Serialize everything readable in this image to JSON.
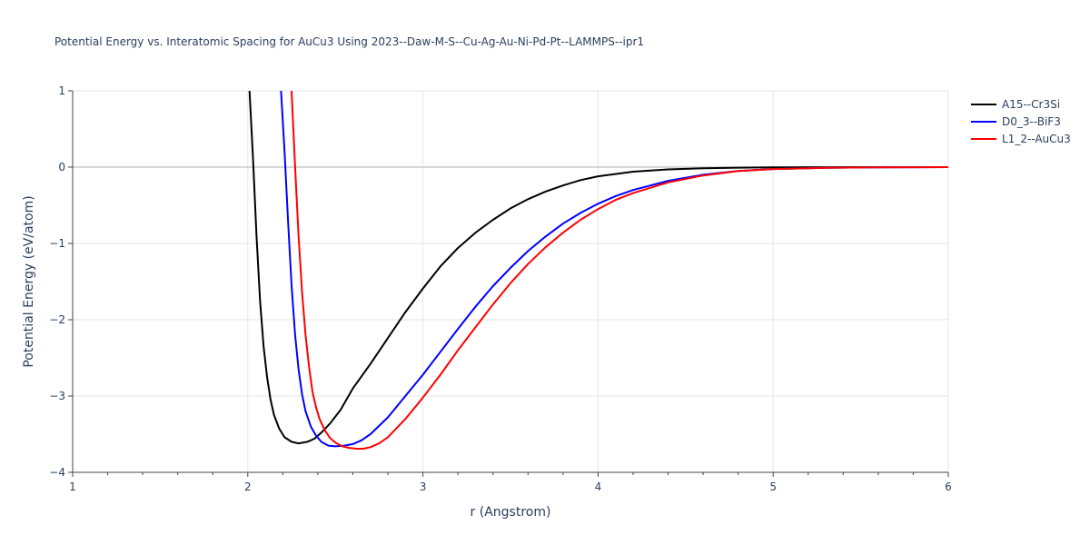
{
  "chart_data": {
    "type": "line",
    "title": "Potential Energy vs. Interatomic Spacing for AuCu3 Using 2023--Daw-M-S--Cu-Ag-Au-Ni-Pd-Pt--LAMMPS--ipr1",
    "xlabel": "r (Angstrom)",
    "ylabel": "Potential Energy (eV/atom)",
    "xlim": [
      1,
      6
    ],
    "ylim": [
      -4,
      1
    ],
    "x_ticks": [
      1,
      2,
      3,
      4,
      5,
      6
    ],
    "x_tick_labels": [
      "1",
      "2",
      "3",
      "4",
      "5",
      "6"
    ],
    "y_ticks": [
      -4,
      -3,
      -2,
      -1,
      0,
      1
    ],
    "y_tick_labels": [
      "−4",
      "−3",
      "−2",
      "−1",
      "0",
      "1"
    ],
    "grid": true,
    "legend_position": "top-right",
    "series": [
      {
        "name": "A15--Cr3Si",
        "color": "#000000",
        "x": [
          2.01,
          2.03,
          2.05,
          2.07,
          2.09,
          2.11,
          2.13,
          2.15,
          2.18,
          2.21,
          2.25,
          2.29,
          2.34,
          2.38,
          2.42,
          2.47,
          2.53,
          2.6,
          2.7,
          2.8,
          2.9,
          3.0,
          3.1,
          3.2,
          3.3,
          3.4,
          3.5,
          3.6,
          3.7,
          3.8,
          3.9,
          4.0,
          4.2,
          4.4,
          4.6,
          4.8,
          5.0,
          5.3,
          5.6,
          6.0
        ],
        "y": [
          1.0,
          0.1,
          -0.9,
          -1.75,
          -2.35,
          -2.75,
          -3.05,
          -3.25,
          -3.43,
          -3.54,
          -3.6,
          -3.62,
          -3.6,
          -3.56,
          -3.48,
          -3.36,
          -3.18,
          -2.9,
          -2.58,
          -2.24,
          -1.9,
          -1.59,
          -1.3,
          -1.06,
          -0.86,
          -0.69,
          -0.54,
          -0.42,
          -0.32,
          -0.24,
          -0.17,
          -0.12,
          -0.06,
          -0.03,
          -0.015,
          -0.007,
          -0.003,
          -0.001,
          0.0,
          0.0
        ]
      },
      {
        "name": "D0_3--BiF3",
        "color": "#0000ff",
        "x": [
          2.19,
          2.21,
          2.23,
          2.25,
          2.27,
          2.29,
          2.31,
          2.33,
          2.36,
          2.39,
          2.42,
          2.46,
          2.5,
          2.55,
          2.6,
          2.65,
          2.7,
          2.8,
          2.9,
          3.0,
          3.1,
          3.2,
          3.3,
          3.4,
          3.5,
          3.6,
          3.7,
          3.8,
          3.9,
          4.0,
          4.1,
          4.2,
          4.4,
          4.6,
          4.8,
          5.0,
          5.3,
          5.6,
          6.0
        ],
        "y": [
          1.0,
          0.2,
          -0.7,
          -1.55,
          -2.2,
          -2.65,
          -2.98,
          -3.2,
          -3.4,
          -3.52,
          -3.6,
          -3.65,
          -3.66,
          -3.65,
          -3.63,
          -3.58,
          -3.5,
          -3.28,
          -3.0,
          -2.72,
          -2.42,
          -2.12,
          -1.83,
          -1.56,
          -1.32,
          -1.1,
          -0.91,
          -0.74,
          -0.6,
          -0.48,
          -0.38,
          -0.3,
          -0.18,
          -0.1,
          -0.05,
          -0.025,
          -0.01,
          -0.003,
          0.0
        ]
      },
      {
        "name": "L1_2--AuCu3",
        "color": "#ff0000",
        "x": [
          2.25,
          2.27,
          2.29,
          2.31,
          2.33,
          2.35,
          2.37,
          2.39,
          2.41,
          2.44,
          2.47,
          2.5,
          2.54,
          2.58,
          2.62,
          2.66,
          2.7,
          2.75,
          2.8,
          2.9,
          3.0,
          3.1,
          3.2,
          3.3,
          3.4,
          3.5,
          3.6,
          3.7,
          3.8,
          3.9,
          4.0,
          4.1,
          4.2,
          4.4,
          4.6,
          4.8,
          5.0,
          5.3,
          5.6,
          6.0
        ],
        "y": [
          1.0,
          0.0,
          -0.9,
          -1.65,
          -2.2,
          -2.62,
          -2.95,
          -3.15,
          -3.3,
          -3.45,
          -3.55,
          -3.61,
          -3.66,
          -3.68,
          -3.69,
          -3.69,
          -3.67,
          -3.62,
          -3.54,
          -3.3,
          -3.02,
          -2.72,
          -2.4,
          -2.1,
          -1.8,
          -1.52,
          -1.27,
          -1.05,
          -0.86,
          -0.69,
          -0.55,
          -0.43,
          -0.34,
          -0.2,
          -0.11,
          -0.05,
          -0.025,
          -0.01,
          -0.003,
          0.0
        ]
      }
    ]
  }
}
